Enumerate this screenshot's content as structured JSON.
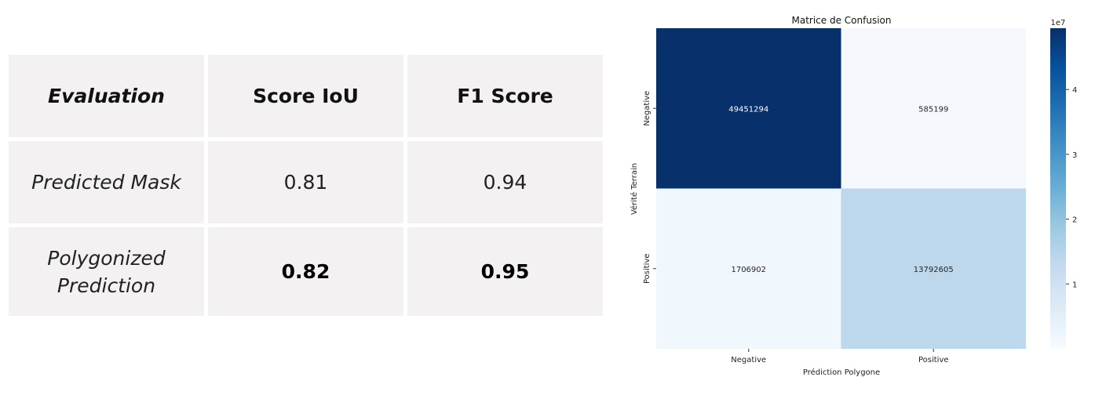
{
  "table": {
    "headers": [
      "Evaluation",
      "Score IoU",
      "F1 Score"
    ],
    "rows": [
      {
        "label": "Predicted Mask",
        "iou": "0.81",
        "f1": "0.94"
      },
      {
        "label": "Polygonized\nPrediction",
        "iou": "0.82",
        "f1": "0.95"
      }
    ]
  },
  "chart_data": {
    "type": "heatmap",
    "title": "Matrice de Confusion",
    "xlabel": "Prédiction Polygone",
    "ylabel": "Vérité Terrain",
    "x_categories": [
      "Negative",
      "Positive"
    ],
    "y_categories": [
      "Negative",
      "Positive"
    ],
    "values": [
      [
        49451294,
        585199
      ],
      [
        1706902,
        13792605
      ]
    ],
    "colormap": "Blues",
    "colorbar": {
      "ticks": [
        "1",
        "2",
        "3",
        "4"
      ],
      "tick_values": [
        10000000,
        20000000,
        30000000,
        40000000
      ],
      "multiplier_label": "1e7",
      "range": [
        0,
        49451294
      ]
    },
    "colors": {
      "min": "#f7fbff",
      "max": "#08306b"
    }
  }
}
